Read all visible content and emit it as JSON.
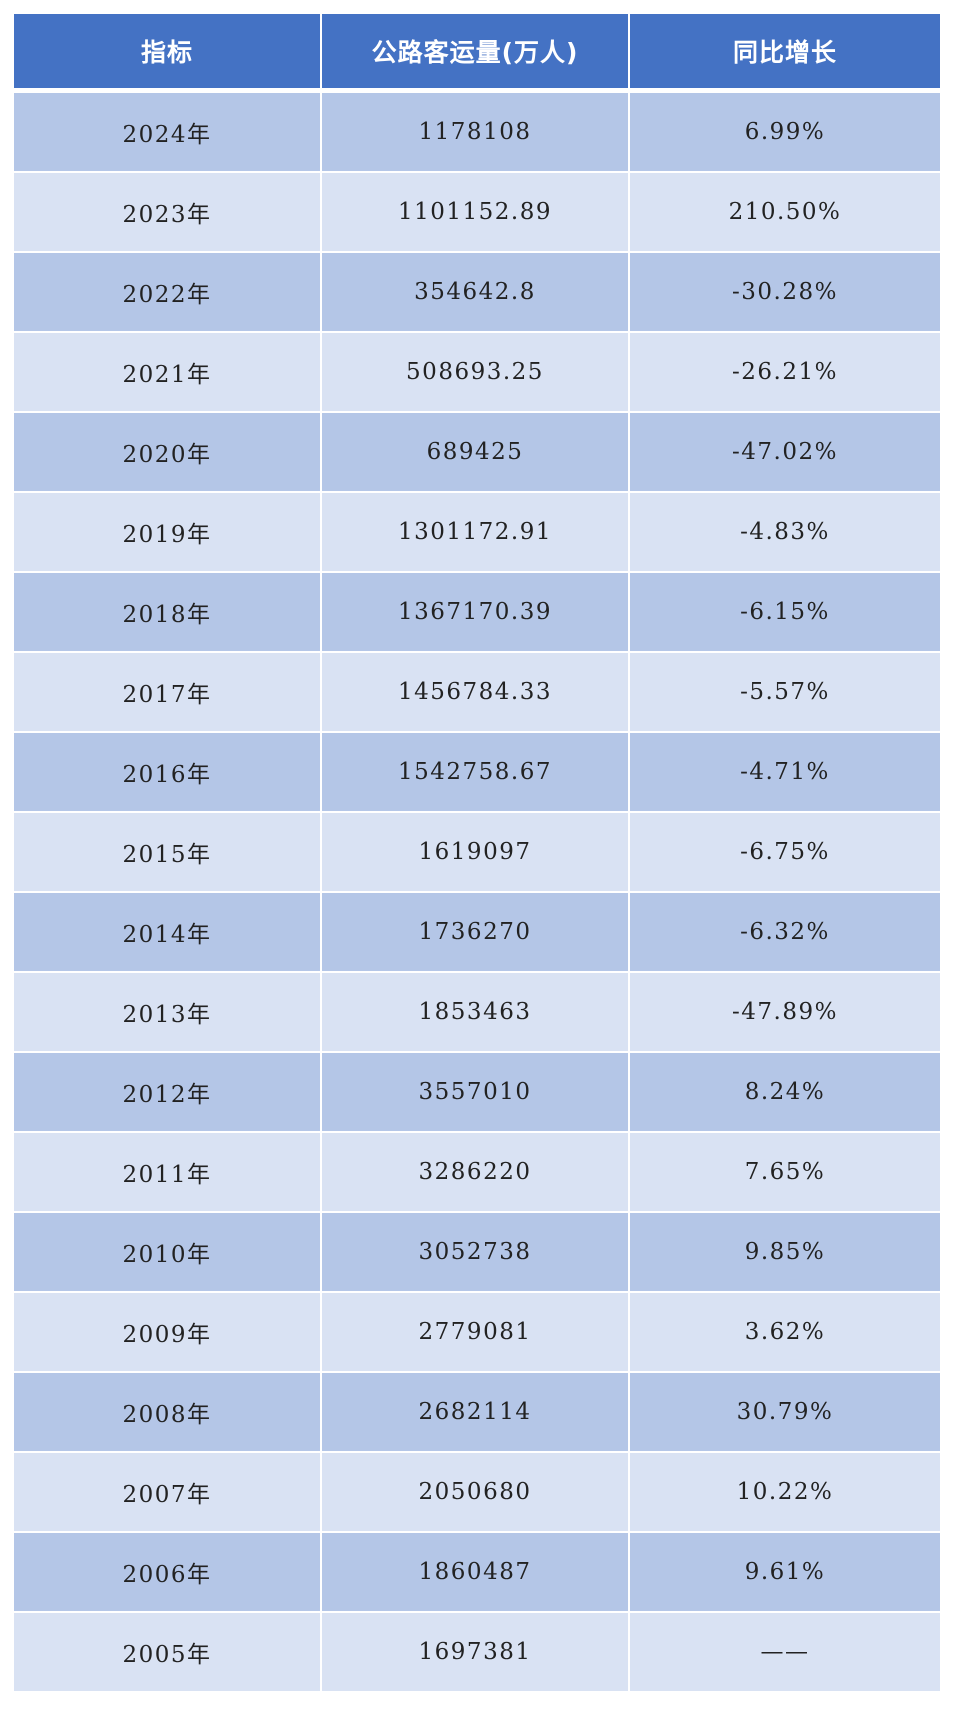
{
  "colors": {
    "header_bg": "#4472c4",
    "row_dark": "#b4c6e7",
    "row_light": "#d9e2f3",
    "text": "#222222"
  },
  "chart_data": {
    "type": "table",
    "columns": [
      "指标",
      "公路客运量(万人)",
      "同比增长"
    ],
    "rows": [
      [
        "2024年",
        "1178108",
        "6.99%"
      ],
      [
        "2023年",
        "1101152.89",
        "210.50%"
      ],
      [
        "2022年",
        "354642.8",
        "-30.28%"
      ],
      [
        "2021年",
        "508693.25",
        "-26.21%"
      ],
      [
        "2020年",
        "689425",
        "-47.02%"
      ],
      [
        "2019年",
        "1301172.91",
        "-4.83%"
      ],
      [
        "2018年",
        "1367170.39",
        "-6.15%"
      ],
      [
        "2017年",
        "1456784.33",
        "-5.57%"
      ],
      [
        "2016年",
        "1542758.67",
        "-4.71%"
      ],
      [
        "2015年",
        "1619097",
        "-6.75%"
      ],
      [
        "2014年",
        "1736270",
        "-6.32%"
      ],
      [
        "2013年",
        "1853463",
        "-47.89%"
      ],
      [
        "2012年",
        "3557010",
        "8.24%"
      ],
      [
        "2011年",
        "3286220",
        "7.65%"
      ],
      [
        "2010年",
        "3052738",
        "9.85%"
      ],
      [
        "2009年",
        "2779081",
        "3.62%"
      ],
      [
        "2008年",
        "2682114",
        "30.79%"
      ],
      [
        "2007年",
        "2050680",
        "10.22%"
      ],
      [
        "2006年",
        "1860487",
        "9.61%"
      ],
      [
        "2005年",
        "1697381",
        "——"
      ]
    ]
  }
}
